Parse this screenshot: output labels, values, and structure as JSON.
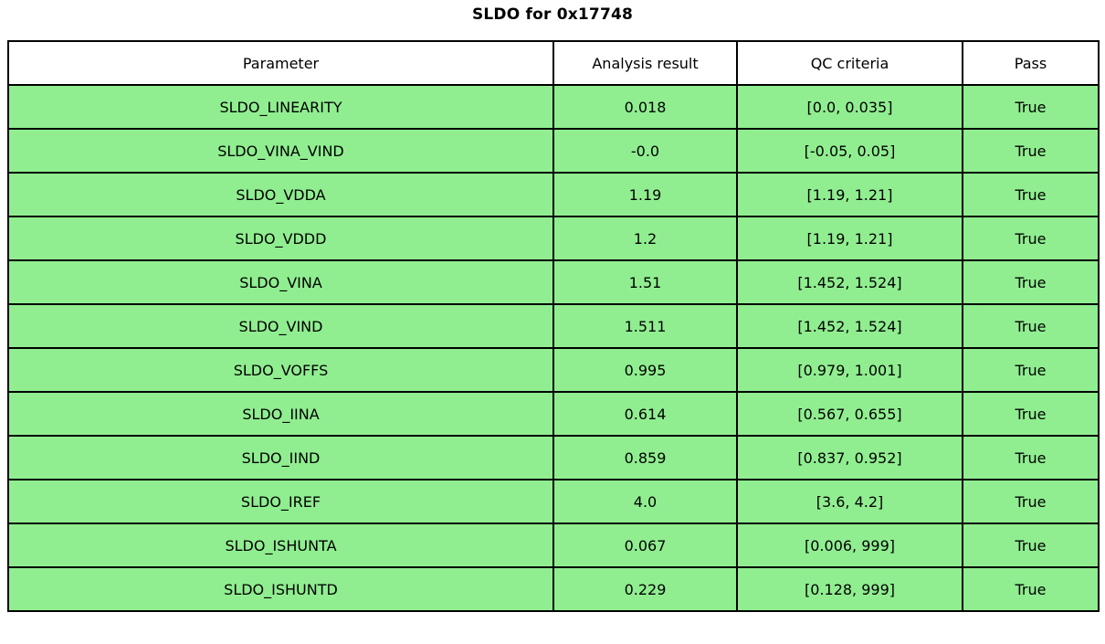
{
  "title": "SLDO for 0x17748",
  "colors": {
    "row_bg": "#90EE90",
    "header_bg": "#FFFFFF",
    "border": "#000000",
    "text": "#000000"
  },
  "chart_data": {
    "type": "table",
    "title": "SLDO for 0x17748",
    "columns": [
      "Parameter",
      "Analysis result",
      "QC criteria",
      "Pass"
    ],
    "rows": [
      [
        "SLDO_LINEARITY",
        "0.018",
        "[0.0, 0.035]",
        "True"
      ],
      [
        "SLDO_VINA_VIND",
        "-0.0",
        "[-0.05, 0.05]",
        "True"
      ],
      [
        "SLDO_VDDA",
        "1.19",
        "[1.19, 1.21]",
        "True"
      ],
      [
        "SLDO_VDDD",
        "1.2",
        "[1.19, 1.21]",
        "True"
      ],
      [
        "SLDO_VINA",
        "1.51",
        "[1.452, 1.524]",
        "True"
      ],
      [
        "SLDO_VIND",
        "1.511",
        "[1.452, 1.524]",
        "True"
      ],
      [
        "SLDO_VOFFS",
        "0.995",
        "[0.979, 1.001]",
        "True"
      ],
      [
        "SLDO_IINA",
        "0.614",
        "[0.567, 0.655]",
        "True"
      ],
      [
        "SLDO_IIND",
        "0.859",
        "[0.837, 0.952]",
        "True"
      ],
      [
        "SLDO_IREF",
        "4.0",
        "[3.6, 4.2]",
        "True"
      ],
      [
        "SLDO_ISHUNTA",
        "0.067",
        "[0.006, 999]",
        "True"
      ],
      [
        "SLDO_ISHUNTD",
        "0.229",
        "[0.128, 999]",
        "True"
      ]
    ],
    "layout": {
      "legend": "none",
      "grid": "full-cell-borders",
      "header_background": "#FFFFFF",
      "cell_background": "#90EE90"
    }
  }
}
